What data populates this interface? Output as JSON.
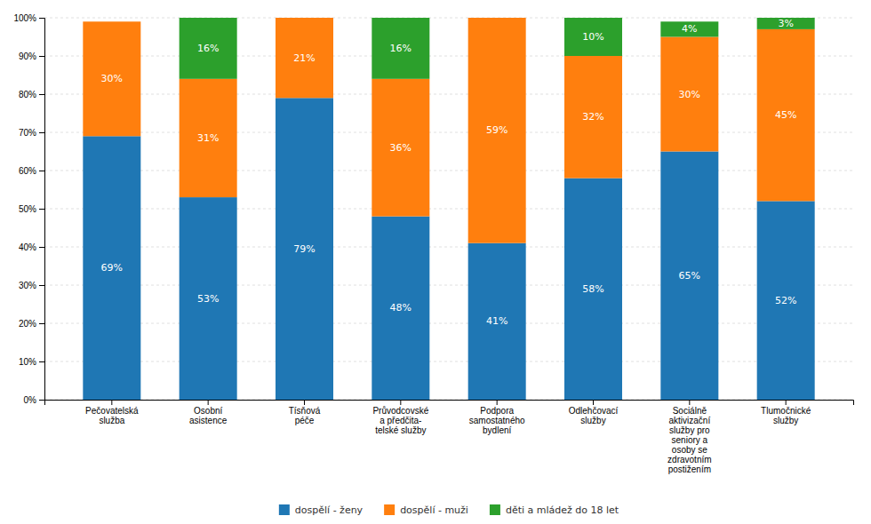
{
  "chart_data": {
    "type": "bar",
    "stacked": true,
    "categories": [
      "Pečovatelská\nslužba",
      "Osobní\nasistence",
      "Tísňová\npéče",
      "Průvodcovské\na předčita-\ntelské služby",
      "Podpora\nsamostatného\nbydlení",
      "Odlehčovací\nslužby",
      "Sociálně\naktivizační\nslužby pro\nseniory a\nosoby se\nzdravotním\npostižením",
      "Tlumočnické\nslužby"
    ],
    "series": [
      {
        "name": "dospělí - ženy",
        "values": [
          69,
          53,
          79,
          48,
          41,
          58,
          65,
          52
        ],
        "value_labels": [
          "69%",
          "53%",
          "79%",
          "48%",
          "41%",
          "58%",
          "65%",
          "52%"
        ]
      },
      {
        "name": "dospělí - muži",
        "values": [
          30,
          31,
          21,
          36,
          59,
          32,
          30,
          45
        ],
        "value_labels": [
          "30%",
          "31%",
          "21%",
          "36%",
          "59%",
          "32%",
          "30%",
          "45%"
        ]
      },
      {
        "name": "děti a mládež do 18 let",
        "values": [
          0,
          16,
          0,
          16,
          0,
          10,
          4,
          3
        ],
        "value_labels": [
          null,
          "16%",
          null,
          "16%",
          null,
          "10%",
          "4%",
          "3%"
        ]
      }
    ],
    "ylim": [
      0,
      100
    ],
    "yticks": [
      {
        "value": 0,
        "label": "0%"
      },
      {
        "value": 10,
        "label": "10%"
      },
      {
        "value": 20,
        "label": "20%"
      },
      {
        "value": 30,
        "label": "30%"
      },
      {
        "value": 40,
        "label": "40%"
      },
      {
        "value": 50,
        "label": "50%"
      },
      {
        "value": 60,
        "label": "60%"
      },
      {
        "value": 70,
        "label": "70%"
      },
      {
        "value": 80,
        "label": "80%"
      },
      {
        "value": 90,
        "label": "90%"
      },
      {
        "value": 100,
        "label": "100%"
      }
    ],
    "grid": true,
    "data_labels": true,
    "legend": "bottom"
  }
}
